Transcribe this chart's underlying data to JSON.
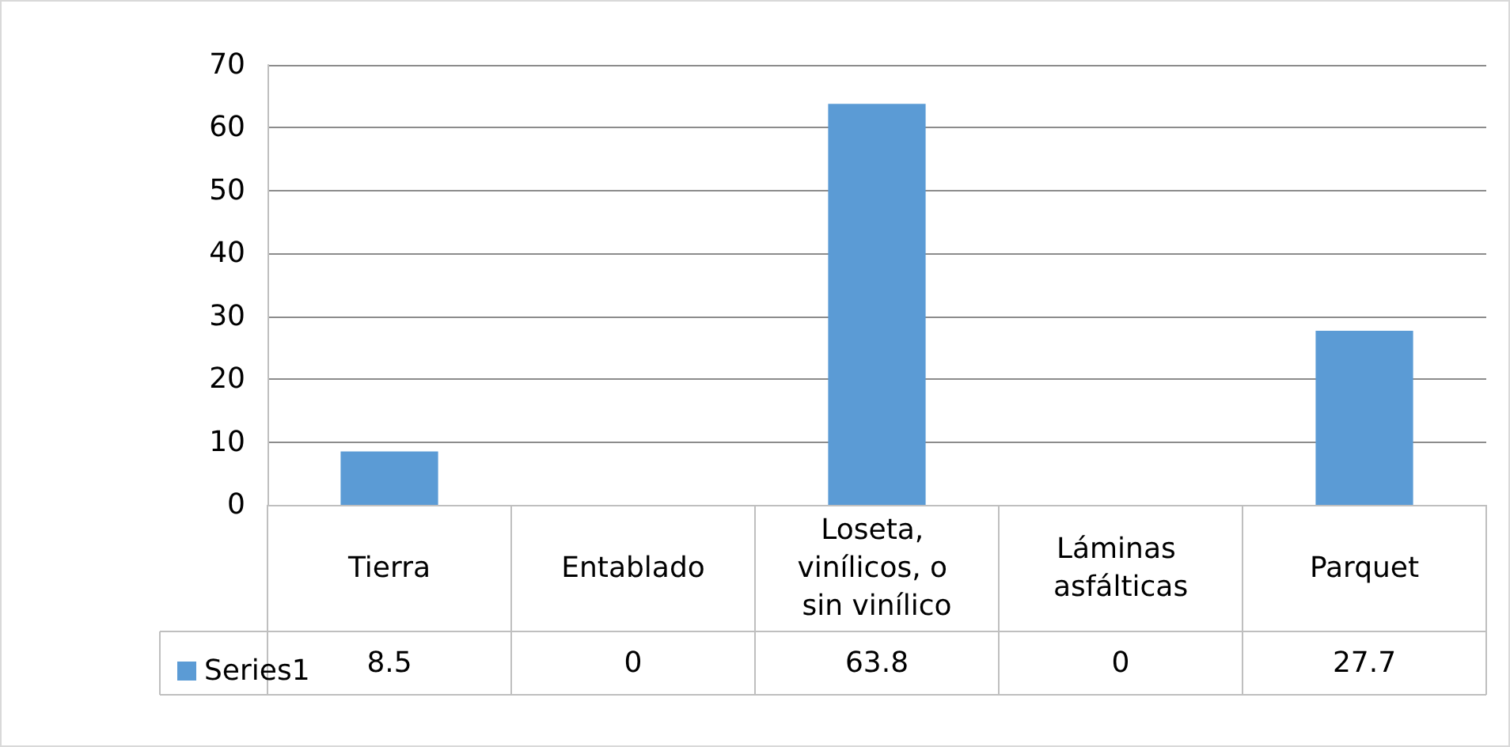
{
  "chart_data": {
    "type": "bar",
    "categories": [
      "Tierra",
      "Entablado",
      "Loseta, vinílicos, o sin vinílico",
      "Láminas asfálticas",
      "Parquet"
    ],
    "series": [
      {
        "name": "Series1",
        "color": "#5b9bd5",
        "values": [
          8.5,
          0,
          63.8,
          0,
          27.7
        ]
      }
    ],
    "ylim": [
      0,
      70
    ],
    "yticks": [
      0,
      10,
      20,
      30,
      40,
      50,
      60,
      70
    ],
    "grid": "y",
    "legend": "bottom left",
    "data_labels": true
  }
}
